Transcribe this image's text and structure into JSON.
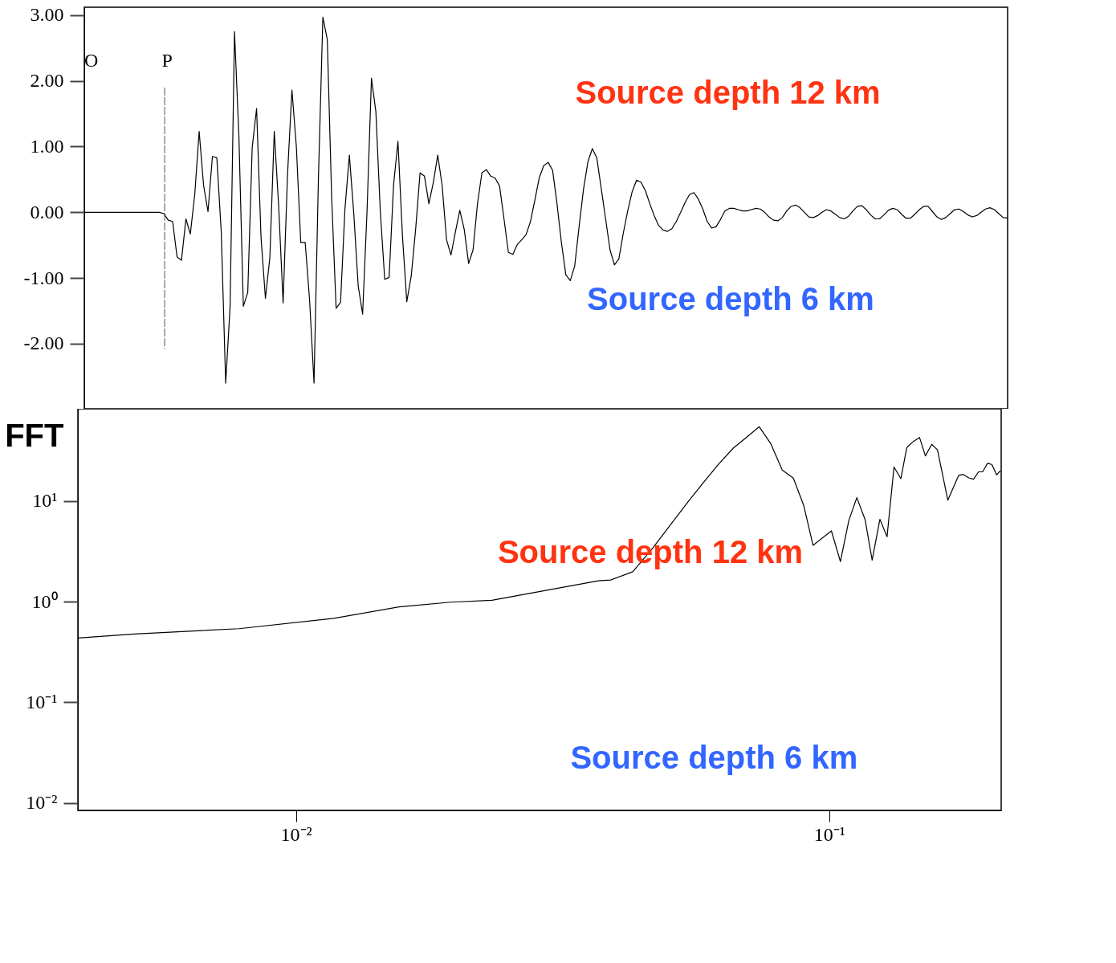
{
  "chart_data": [
    {
      "type": "line",
      "tick_labels": "y",
      "color": "#000000",
      "categories": [
        null,
        null,
        null,
        null,
        null,
        null,
        null,
        null,
        null,
        null,
        null,
        null,
        null,
        null,
        null,
        null,
        null,
        null,
        null,
        null,
        null,
        null,
        null,
        null,
        null,
        null,
        null,
        null,
        null,
        null,
        null,
        null,
        null,
        null,
        null,
        null,
        null,
        null,
        null,
        null,
        null,
        null,
        null,
        null,
        null,
        null,
        null,
        null,
        null,
        null,
        null,
        null,
        null,
        null,
        null,
        null,
        null,
        null,
        null,
        null,
        null,
        null,
        null,
        null,
        null,
        null,
        null,
        null,
        null,
        null,
        null,
        null,
        null,
        null,
        null,
        null,
        null,
        null,
        null,
        null,
        null,
        null,
        null,
        null,
        null,
        null,
        null,
        null,
        null,
        null,
        null,
        null,
        null,
        null,
        null,
        null,
        null,
        null,
        null,
        null,
        null,
        null,
        null,
        null,
        null,
        null,
        null,
        null,
        null,
        null,
        null,
        null,
        null,
        null,
        null,
        null,
        null,
        null,
        null,
        null,
        null,
        null,
        null,
        null,
        null,
        null,
        null,
        null,
        null,
        null,
        null,
        null,
        null,
        null,
        null,
        null,
        null,
        null,
        null,
        null,
        null,
        null,
        null,
        null,
        null,
        null,
        null,
        null,
        null,
        null,
        null,
        null,
        null,
        null,
        null,
        null,
        null,
        null,
        null,
        null,
        null,
        null,
        null,
        null,
        null,
        null,
        null,
        null,
        null,
        null,
        null,
        null,
        null,
        null,
        null,
        null,
        null,
        null,
        null,
        null,
        null,
        null,
        null,
        null,
        null,
        null,
        null,
        null,
        null,
        null,
        null,
        null,
        null,
        null,
        null,
        null,
        null,
        null,
        null,
        null,
        null,
        null,
        null,
        null,
        null,
        null,
        null,
        null,
        null,
        null
      ],
      "values": [
        0,
        0,
        0,
        0,
        0,
        0,
        0,
        0,
        0,
        0,
        0,
        0,
        0,
        0,
        0,
        0,
        0,
        0,
        -0.02,
        -0.12,
        -0.14,
        -0.68,
        -0.73,
        -0.1,
        -0.33,
        0.27,
        1.23,
        0.41,
        0.01,
        0.85,
        0.83,
        -0.3,
        -2.6,
        -1.44,
        2.75,
        1.15,
        -1.43,
        -1.22,
        0.98,
        1.58,
        -0.38,
        -1.31,
        -0.69,
        1.23,
        0.09,
        -1.38,
        0.57,
        1.86,
        1.0,
        -0.46,
        -0.46,
        -1.34,
        -2.6,
        0.53,
        2.97,
        2.63,
        0.21,
        -1.46,
        -1.37,
        0.05,
        0.87,
        -0.02,
        -1.12,
        -1.55,
        0.02,
        2.04,
        1.53,
        0.02,
        -1.02,
        -0.99,
        0.41,
        1.08,
        -0.34,
        -1.36,
        -0.97,
        -0.26,
        0.6,
        0.55,
        0.13,
        0.45,
        0.87,
        0.41,
        -0.42,
        -0.65,
        -0.3,
        0.03,
        -0.26,
        -0.78,
        -0.57,
        0.13,
        0.6,
        0.65,
        0.55,
        0.52,
        0.4,
        -0.1,
        -0.61,
        -0.64,
        -0.49,
        -0.42,
        -0.34,
        -0.14,
        0.19,
        0.53,
        0.71,
        0.76,
        0.64,
        0.13,
        -0.46,
        -0.95,
        -1.04,
        -0.82,
        -0.22,
        0.35,
        0.77,
        0.97,
        0.83,
        0.37,
        -0.1,
        -0.57,
        -0.8,
        -0.71,
        -0.32,
        0.02,
        0.31,
        0.49,
        0.46,
        0.33,
        0.13,
        -0.05,
        -0.2,
        -0.27,
        -0.29,
        -0.25,
        -0.14,
        0.0,
        0.15,
        0.27,
        0.3,
        0.2,
        0.05,
        -0.14,
        -0.24,
        -0.22,
        -0.11,
        0.02,
        0.06,
        0.06,
        0.04,
        0.02,
        0.02,
        0.04,
        0.06,
        0.05,
        0.0,
        -0.07,
        -0.12,
        -0.13,
        -0.08,
        0.02,
        0.09,
        0.11,
        0.07,
        0.0,
        -0.07,
        -0.08,
        -0.05,
        0.0,
        0.04,
        0.02,
        -0.03,
        -0.08,
        -0.1,
        -0.06,
        0.02,
        0.09,
        0.1,
        0.04,
        -0.04,
        -0.1,
        -0.1,
        -0.04,
        0.03,
        0.06,
        0.04,
        -0.03,
        -0.09,
        -0.09,
        -0.03,
        0.04,
        0.09,
        0.09,
        0.01,
        -0.07,
        -0.11,
        -0.08,
        -0.02,
        0.04,
        0.05,
        0.01,
        -0.04,
        -0.07,
        -0.05,
        0.0,
        0.05,
        0.07,
        0.04,
        -0.02,
        -0.08,
        -0.09
      ],
      "ylim": [
        -2.99,
        3.12
      ],
      "yticks": [
        {
          "value": 3,
          "label": "3.00"
        },
        {
          "value": 2,
          "label": "2.00"
        },
        {
          "value": 1,
          "label": "1.00"
        },
        {
          "value": 0,
          "label": "0.00"
        },
        {
          "value": -1,
          "label": "-1.00"
        },
        {
          "value": -2,
          "label": "-2.00"
        }
      ],
      "annotations": [
        "O",
        "P",
        "Source depth 12 km",
        "Source depth 6 km"
      ]
    },
    {
      "type": "line",
      "log": "xy",
      "color": "#000000",
      "ylabel": "FFT",
      "x": [
        0.0039,
        0.00498,
        0.00782,
        0.01177,
        0.0156,
        0.0195,
        0.0233,
        0.0369,
        0.0389,
        0.0428,
        0.0466,
        0.0509,
        0.0544,
        0.0581,
        0.062,
        0.0661,
        0.0698,
        0.0739,
        0.0777,
        0.0816,
        0.0856,
        0.0895,
        0.0932,
        0.1009,
        0.1049,
        0.1088,
        0.1126,
        0.1167,
        0.1203,
        0.1244,
        0.1283,
        0.1322,
        0.1362,
        0.1397,
        0.1437,
        0.1476,
        0.1514,
        0.1556,
        0.1595,
        0.1668,
        0.1748,
        0.1782,
        0.1826,
        0.1864,
        0.1904,
        0.1938,
        0.1981,
        0.2018,
        0.2059,
        0.2092
      ],
      "values": [
        0.435,
        0.477,
        0.538,
        0.681,
        0.887,
        0.987,
        1.03,
        1.61,
        1.64,
        1.98,
        3.37,
        6.25,
        9.9,
        15.3,
        23.3,
        33.7,
        42.6,
        54.8,
        37.0,
        20.3,
        16.9,
        9.1,
        3.63,
        5.05,
        2.5,
        6.43,
        10.8,
        6.54,
        2.59,
        6.58,
        4.41,
        21.8,
        16.7,
        34.0,
        39.1,
        42.9,
        28.1,
        36.6,
        32.3,
        10.2,
        18.0,
        18.4,
        17.0,
        16.5,
        19.5,
        19.5,
        23.8,
        23.0,
        18.2,
        20.0
      ],
      "xlim": [
        0.0039,
        0.21
      ],
      "xticks": [
        {
          "value": 0.01,
          "label": "10⁻²"
        },
        {
          "value": 0.1,
          "label": "10⁻¹"
        }
      ],
      "ylim": [
        0.0084,
        82.6
      ],
      "yticks": [
        {
          "value": 0.01,
          "label": "10⁻²"
        },
        {
          "value": 0.1,
          "label": "10⁻¹"
        },
        {
          "value": 1,
          "label": "10⁰"
        },
        {
          "value": 10,
          "label": "10¹"
        }
      ],
      "annotations": [
        "Source depth 12 km",
        "Source depth 6 km"
      ]
    }
  ]
}
